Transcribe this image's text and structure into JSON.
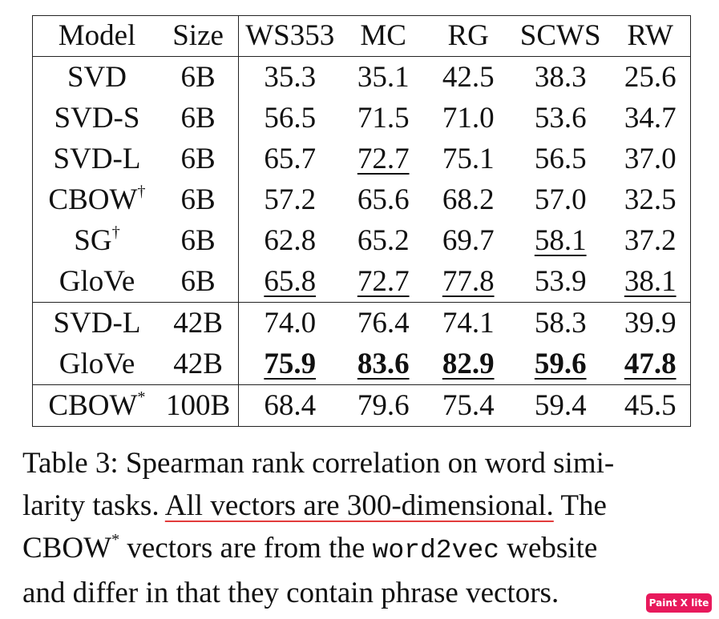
{
  "table": {
    "columns": [
      "Model",
      "Size",
      "WS353",
      "MC",
      "RG",
      "SCWS",
      "RW"
    ],
    "rows": [
      {
        "model": "SVD",
        "sup": "",
        "size": "6B",
        "values": [
          "35.3",
          "35.1",
          "42.5",
          "38.3",
          "25.6"
        ],
        "style": [
          "",
          "",
          "",
          "",
          ""
        ]
      },
      {
        "model": "SVD-S",
        "sup": "",
        "size": "6B",
        "values": [
          "56.5",
          "71.5",
          "71.0",
          "53.6",
          "34.7"
        ],
        "style": [
          "",
          "",
          "",
          "",
          ""
        ]
      },
      {
        "model": "SVD-L",
        "sup": "",
        "size": "6B",
        "values": [
          "65.7",
          "72.7",
          "75.1",
          "56.5",
          "37.0"
        ],
        "style": [
          "",
          "underline",
          "",
          "",
          ""
        ]
      },
      {
        "model": "CBOW",
        "sup": "†",
        "size": "6B",
        "values": [
          "57.2",
          "65.6",
          "68.2",
          "57.0",
          "32.5"
        ],
        "style": [
          "",
          "",
          "",
          "",
          ""
        ]
      },
      {
        "model": "SG",
        "sup": "†",
        "size": "6B",
        "values": [
          "62.8",
          "65.2",
          "69.7",
          "58.1",
          "37.2"
        ],
        "style": [
          "",
          "",
          "",
          "underline",
          ""
        ]
      },
      {
        "model": "GloVe",
        "sup": "",
        "size": "6B",
        "values": [
          "65.8",
          "72.7",
          "77.8",
          "53.9",
          "38.1"
        ],
        "style": [
          "underline",
          "underline",
          "underline",
          "",
          "underline"
        ]
      },
      {
        "model": "SVD-L",
        "sup": "",
        "size": "42B",
        "values": [
          "74.0",
          "76.4",
          "74.1",
          "58.3",
          "39.9"
        ],
        "style": [
          "",
          "",
          "",
          "",
          ""
        ]
      },
      {
        "model": "GloVe",
        "sup": "",
        "size": "42B",
        "values": [
          "75.9",
          "83.6",
          "82.9",
          "59.6",
          "47.8"
        ],
        "style": [
          "bold-underline",
          "bold-underline",
          "bold-underline",
          "bold-underline",
          "bold-underline"
        ]
      },
      {
        "model": "CBOW",
        "sup": "*",
        "size": "100B",
        "values": [
          "68.4",
          "79.6",
          "75.4",
          "59.4",
          "45.5"
        ],
        "style": [
          "",
          "",
          "",
          "",
          ""
        ]
      }
    ]
  },
  "caption": {
    "line1": "Table 3: Spearman rank correlation on word simi-",
    "line2_pre": "larity tasks. ",
    "line2_highlight": "All vectors are 300-dimensional.",
    "line2_post": " The",
    "line3_model": "CBOW",
    "line3_sup": "*",
    "line3_mid": " vectors are from the ",
    "line3_code": "word2vec",
    "line3_post": " website",
    "line4": "and differ in that they contain phrase vectors."
  },
  "watermark": {
    "label": "Paint X lite",
    "color": "#e8195c"
  }
}
